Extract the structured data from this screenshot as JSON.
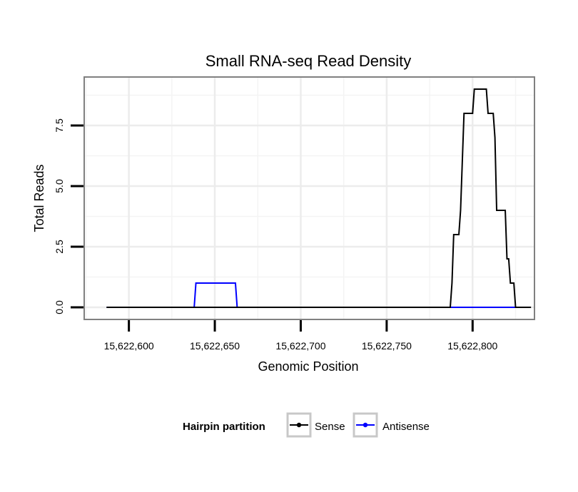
{
  "chart_data": {
    "type": "line",
    "title": "Small RNA-seq Read Density",
    "xlabel": "Genomic Position",
    "ylabel": "Total Reads",
    "xlim": [
      15622574,
      15622836
    ],
    "ylim": [
      -0.5,
      9.5
    ],
    "x_ticks": [
      15622600,
      15622650,
      15622700,
      15622750,
      15622800
    ],
    "x_tick_labels": [
      "15,622,600",
      "15,622,650",
      "15,622,700",
      "15,622,750",
      "15,622,800"
    ],
    "y_ticks": [
      0,
      2.5,
      5,
      7.5
    ],
    "y_tick_labels": [
      "0.0",
      "2.5",
      "5.0",
      "7.5"
    ],
    "grid": true,
    "legend": {
      "title": "Hairpin partition",
      "position": "bottom",
      "entries": [
        {
          "name": "Sense",
          "color": "#000000"
        },
        {
          "name": "Antisense",
          "color": "#0000ff"
        }
      ]
    },
    "series": [
      {
        "name": "Sense",
        "color": "#000000",
        "points": [
          [
            15622587,
            0
          ],
          [
            15622787,
            0
          ],
          [
            15622788,
            1
          ],
          [
            15622789,
            3
          ],
          [
            15622792,
            3
          ],
          [
            15622793,
            4
          ],
          [
            15622795,
            8
          ],
          [
            15622800,
            8
          ],
          [
            15622801,
            9
          ],
          [
            15622808,
            9
          ],
          [
            15622809,
            8
          ],
          [
            15622812,
            8
          ],
          [
            15622813,
            7
          ],
          [
            15622814,
            4
          ],
          [
            15622819,
            4
          ],
          [
            15622820,
            2
          ],
          [
            15622821,
            2
          ],
          [
            15622822,
            1
          ],
          [
            15622824,
            1
          ],
          [
            15622825,
            0
          ],
          [
            15622834,
            0
          ]
        ]
      },
      {
        "name": "Antisense",
        "color": "#0000ff",
        "points": [
          [
            15622587,
            0
          ],
          [
            15622638,
            0
          ],
          [
            15622639,
            1
          ],
          [
            15622662,
            1
          ],
          [
            15622663,
            0
          ],
          [
            15622788,
            0
          ],
          [
            15622825,
            0
          ]
        ]
      }
    ]
  }
}
